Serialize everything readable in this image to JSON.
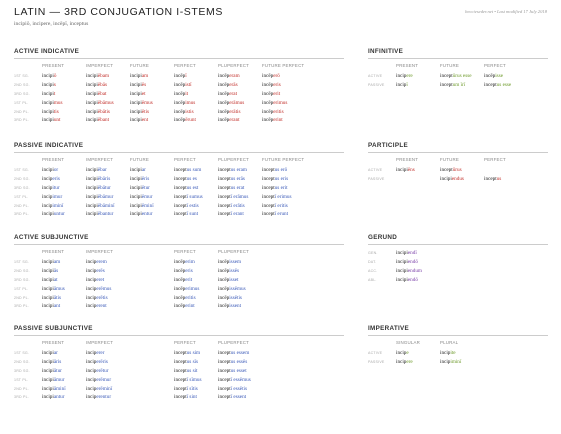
{
  "header": {
    "title": "LATIN — 3RD CONJUGATION I-STEMS",
    "principal_parts": "incipiō, incipere, incēpī, inceptus",
    "meta": "beccieseder.net • Last modified 17 July 2018"
  },
  "active_indicative": {
    "title": "ACTIVE INDICATIVE",
    "columns": [
      "PRESENT",
      "IMPERFECT",
      "FUTURE",
      "PERFECT",
      "PLUPERFECT",
      "FUTURE PERFECT"
    ],
    "rows": [
      {
        "label": "1ST SG.",
        "cells": [
          [
            "incipi",
            "ō"
          ],
          [
            "incipi",
            "ēbam"
          ],
          [
            "incipi",
            "am"
          ],
          [
            "incēp",
            "ī"
          ],
          [
            "incēp",
            "eram"
          ],
          [
            "incēp",
            "erō"
          ]
        ]
      },
      {
        "label": "2ND SG.",
        "cells": [
          [
            "incipi",
            "s"
          ],
          [
            "incipi",
            "ēbās"
          ],
          [
            "incipi",
            "ēs"
          ],
          [
            "incēp",
            "istī"
          ],
          [
            "incēp",
            "erās"
          ],
          [
            "incēp",
            "eris"
          ]
        ]
      },
      {
        "label": "3RD SG.",
        "cells": [
          [
            "incipi",
            "t"
          ],
          [
            "incipi",
            "ēbat"
          ],
          [
            "incipi",
            "et"
          ],
          [
            "incēp",
            "it"
          ],
          [
            "incēp",
            "erat"
          ],
          [
            "incēp",
            "erit"
          ]
        ]
      },
      {
        "label": "1ST PL.",
        "cells": [
          [
            "incipi",
            "mus"
          ],
          [
            "incipi",
            "ēbāmus"
          ],
          [
            "incipi",
            "ēmus"
          ],
          [
            "incēp",
            "imus"
          ],
          [
            "incēp",
            "erāmus"
          ],
          [
            "incēp",
            "erimus"
          ]
        ]
      },
      {
        "label": "2ND PL.",
        "cells": [
          [
            "incipi",
            "tis"
          ],
          [
            "incipi",
            "ēbātis"
          ],
          [
            "incipi",
            "ētis"
          ],
          [
            "incēp",
            "istis"
          ],
          [
            "incēp",
            "erātis"
          ],
          [
            "incēp",
            "eritis"
          ]
        ]
      },
      {
        "label": "3RD PL.",
        "cells": [
          [
            "incipi",
            "unt"
          ],
          [
            "incipi",
            "ēbant"
          ],
          [
            "incipi",
            "ent"
          ],
          [
            "incēp",
            "ērunt"
          ],
          [
            "incēp",
            "erant"
          ],
          [
            "incēp",
            "erint"
          ]
        ]
      }
    ]
  },
  "passive_indicative": {
    "title": "PASSIVE INDICATIVE",
    "columns": [
      "PRESENT",
      "IMPERFECT",
      "FUTURE",
      "PERFECT",
      "PLUPERFECT",
      "FUTURE PERFECT"
    ],
    "rows": [
      {
        "label": "1ST SG.",
        "cells": [
          [
            "incipi",
            "or"
          ],
          [
            "incipi",
            "ēbar"
          ],
          [
            "incipi",
            "ar"
          ],
          [
            "incept",
            "us sum"
          ],
          [
            "incept",
            "us eram"
          ],
          [
            "incept",
            "us erō"
          ]
        ]
      },
      {
        "label": "2ND SG.",
        "cells": [
          [
            "incip",
            "eris"
          ],
          [
            "incipi",
            "ēbāris"
          ],
          [
            "incipi",
            "ēris"
          ],
          [
            "incept",
            "us es"
          ],
          [
            "incept",
            "us erās"
          ],
          [
            "incept",
            "us eris"
          ]
        ]
      },
      {
        "label": "3RD SG.",
        "cells": [
          [
            "incip",
            "itur"
          ],
          [
            "incipi",
            "ēbātur"
          ],
          [
            "incipi",
            "ētur"
          ],
          [
            "incept",
            "us est"
          ],
          [
            "incept",
            "us erat"
          ],
          [
            "incept",
            "us erit"
          ]
        ]
      },
      {
        "label": "1ST PL.",
        "cells": [
          [
            "incip",
            "imur"
          ],
          [
            "incipi",
            "ēbāmur"
          ],
          [
            "incipi",
            "ēmur"
          ],
          [
            "incept",
            "ī sumus"
          ],
          [
            "incept",
            "ī erāmus"
          ],
          [
            "incept",
            "ī erimus"
          ]
        ]
      },
      {
        "label": "2ND PL.",
        "cells": [
          [
            "incip",
            "iminī"
          ],
          [
            "incipi",
            "ēbāminī"
          ],
          [
            "incipi",
            "ēminī"
          ],
          [
            "incept",
            "ī estis"
          ],
          [
            "incept",
            "ī erātis"
          ],
          [
            "incept",
            "ī eritis"
          ]
        ]
      },
      {
        "label": "3RD PL.",
        "cells": [
          [
            "incipi",
            "untur"
          ],
          [
            "incipi",
            "ēbantur"
          ],
          [
            "incipi",
            "entur"
          ],
          [
            "incept",
            "ī sunt"
          ],
          [
            "incept",
            "ī erant"
          ],
          [
            "incept",
            "ī erunt"
          ]
        ]
      }
    ]
  },
  "active_subjunctive": {
    "title": "ACTIVE SUBJUNCTIVE",
    "columns": [
      "PRESENT",
      "IMPERFECT",
      "",
      "PERFECT",
      "PLUPERFECT"
    ],
    "rows": [
      {
        "label": "1ST SG.",
        "cells": [
          [
            "incipi",
            "am"
          ],
          [
            "incip",
            "erem"
          ],
          [
            "",
            ""
          ],
          [
            "incēp",
            "erim"
          ],
          [
            "incēp",
            "issem"
          ]
        ]
      },
      {
        "label": "2ND SG.",
        "cells": [
          [
            "incipi",
            "ās"
          ],
          [
            "incip",
            "erēs"
          ],
          [
            "",
            ""
          ],
          [
            "incēp",
            "eris"
          ],
          [
            "incēp",
            "issēs"
          ]
        ]
      },
      {
        "label": "3RD SG.",
        "cells": [
          [
            "incipi",
            "at"
          ],
          [
            "incip",
            "eret"
          ],
          [
            "",
            ""
          ],
          [
            "incēp",
            "erit"
          ],
          [
            "incēp",
            "isset"
          ]
        ]
      },
      {
        "label": "1ST PL.",
        "cells": [
          [
            "incipi",
            "āmus"
          ],
          [
            "incip",
            "erēmus"
          ],
          [
            "",
            ""
          ],
          [
            "incēp",
            "erimus"
          ],
          [
            "incēp",
            "issēmus"
          ]
        ]
      },
      {
        "label": "2ND PL.",
        "cells": [
          [
            "incipi",
            "ātis"
          ],
          [
            "incip",
            "erētis"
          ],
          [
            "",
            ""
          ],
          [
            "incēp",
            "eritis"
          ],
          [
            "incēp",
            "issētis"
          ]
        ]
      },
      {
        "label": "3RD PL.",
        "cells": [
          [
            "incipi",
            "ant"
          ],
          [
            "incip",
            "erent"
          ],
          [
            "",
            ""
          ],
          [
            "incēp",
            "erint"
          ],
          [
            "incēp",
            "issent"
          ]
        ]
      }
    ]
  },
  "passive_subjunctive": {
    "title": "PASSIVE SUBJUNCTIVE",
    "columns": [
      "PRESENT",
      "IMPERFECT",
      "",
      "PERFECT",
      "PLUPERFECT"
    ],
    "rows": [
      {
        "label": "1ST SG.",
        "cells": [
          [
            "incipi",
            "ar"
          ],
          [
            "incip",
            "erer"
          ],
          [
            "",
            ""
          ],
          [
            "incept",
            "us sim"
          ],
          [
            "incept",
            "us essem"
          ]
        ]
      },
      {
        "label": "2ND SG.",
        "cells": [
          [
            "incipi",
            "āris"
          ],
          [
            "incip",
            "erēris"
          ],
          [
            "",
            ""
          ],
          [
            "incept",
            "us sīs"
          ],
          [
            "incept",
            "us essēs"
          ]
        ]
      },
      {
        "label": "3RD SG.",
        "cells": [
          [
            "incipi",
            "ātur"
          ],
          [
            "incip",
            "erētur"
          ],
          [
            "",
            ""
          ],
          [
            "incept",
            "us sit"
          ],
          [
            "incept",
            "us esset"
          ]
        ]
      },
      {
        "label": "1ST PL.",
        "cells": [
          [
            "incipi",
            "āmur"
          ],
          [
            "incip",
            "erēmur"
          ],
          [
            "",
            ""
          ],
          [
            "incept",
            "ī sīmus"
          ],
          [
            "incept",
            "ī essēmus"
          ]
        ]
      },
      {
        "label": "2ND PL.",
        "cells": [
          [
            "incipi",
            "āminī"
          ],
          [
            "incip",
            "erēminī"
          ],
          [
            "",
            ""
          ],
          [
            "incept",
            "ī sītis"
          ],
          [
            "incept",
            "ī essētis"
          ]
        ]
      },
      {
        "label": "3RD PL.",
        "cells": [
          [
            "incipi",
            "antur"
          ],
          [
            "incip",
            "erentur"
          ],
          [
            "",
            ""
          ],
          [
            "incept",
            "ī sint"
          ],
          [
            "incept",
            "ī essent"
          ]
        ]
      }
    ]
  },
  "infinitive": {
    "title": "INFINITIVE",
    "columns": [
      "PRESENT",
      "FUTURE",
      "PERFECT"
    ],
    "rows": [
      {
        "label": "ACTIVE",
        "cells": [
          [
            "incip",
            "ere"
          ],
          [
            "incept",
            "ūrus esse"
          ],
          [
            "incēp",
            "isse"
          ]
        ]
      },
      {
        "label": "PASSIVE",
        "cells": [
          [
            "incip",
            "ī"
          ],
          [
            "incept",
            "um īrī"
          ],
          [
            "incept",
            "us esse"
          ]
        ]
      }
    ]
  },
  "participle": {
    "title": "PARTICIPLE",
    "columns": [
      "PRESENT",
      "FUTURE",
      "PERFECT"
    ],
    "rows": [
      {
        "label": "ACTIVE",
        "cells": [
          [
            "incipi",
            "ēns"
          ],
          [
            "incept",
            "ūrus"
          ],
          [
            "",
            ""
          ]
        ]
      },
      {
        "label": "PASSIVE",
        "cells": [
          [
            "",
            ""
          ],
          [
            "incipi",
            "endus"
          ],
          [
            "incept",
            "us"
          ]
        ]
      }
    ]
  },
  "gerund": {
    "title": "GERUND",
    "rows": [
      {
        "label": "GEN.",
        "cells": [
          [
            "incipi",
            "endī"
          ]
        ]
      },
      {
        "label": "DAT.",
        "cells": [
          [
            "incipi",
            "endō"
          ]
        ]
      },
      {
        "label": "ACC.",
        "cells": [
          [
            "incipi",
            "endum"
          ]
        ]
      },
      {
        "label": "ABL.",
        "cells": [
          [
            "incipi",
            "endō"
          ]
        ]
      }
    ]
  },
  "imperative": {
    "title": "IMPERATIVE",
    "columns": [
      "SINGULAR",
      "PLURAL"
    ],
    "rows": [
      {
        "label": "ACTIVE",
        "cells": [
          [
            "incip",
            "e"
          ],
          [
            "incip",
            "ite"
          ]
        ]
      },
      {
        "label": "PASSIVE",
        "cells": [
          [
            "incip",
            "ere"
          ],
          [
            "incip",
            "iminī"
          ]
        ]
      }
    ]
  },
  "colors": {
    "active": "#c2302b",
    "passive": "#3b5ab8",
    "infinitive": "#6d9a2a",
    "gerund": "#7a3fa8"
  }
}
